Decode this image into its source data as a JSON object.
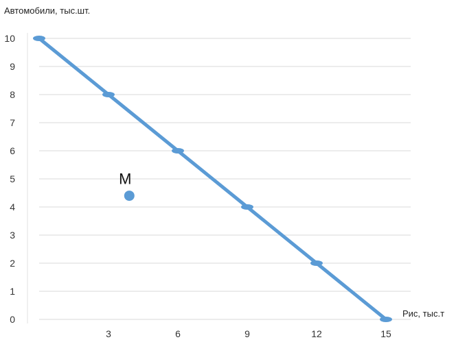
{
  "chart_data": {
    "type": "line",
    "ylabel": "Автомобили, тыс.шт.",
    "xlabel": "Рис, тыс.т",
    "xlim": [
      0,
      15
    ],
    "ylim": [
      0,
      10
    ],
    "xticks": [
      3,
      6,
      9,
      12,
      15
    ],
    "yticks": [
      0,
      1,
      2,
      3,
      4,
      5,
      6,
      7,
      8,
      9,
      10
    ],
    "grid": true,
    "series": [
      {
        "x": [
          0,
          3,
          6,
          9,
          12,
          15
        ],
        "y": [
          10,
          8,
          6,
          4,
          2,
          0
        ]
      }
    ],
    "annotations": [
      {
        "label": "M",
        "x": 3.9,
        "y": 4.4
      }
    ],
    "colors": {
      "line": "#5b9bd5",
      "grid": "#d9d9d9",
      "point": "#5b9bd5"
    }
  }
}
